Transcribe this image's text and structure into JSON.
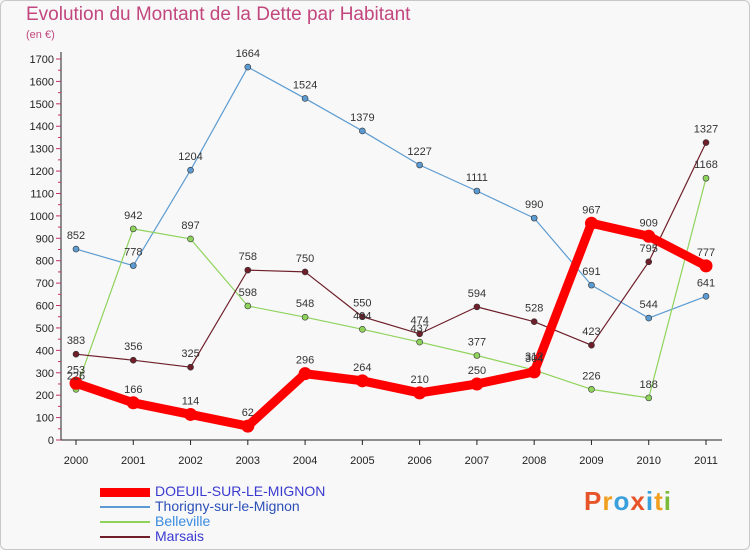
{
  "header": {
    "title": "Evolution du Montant de la Dette par Habitant",
    "unit": "(en €)"
  },
  "logo": {
    "text": "Proxiti",
    "colors": [
      "#e8542a",
      "#f0a020",
      "#3aa0dc",
      "#e8542a",
      "#3aa0dc",
      "#f0a020",
      "#7cbb3a"
    ]
  },
  "chart_data": {
    "type": "line",
    "x": [
      "2000",
      "2001",
      "2002",
      "2003",
      "2004",
      "2005",
      "2006",
      "2007",
      "2008",
      "2009",
      "2010",
      "2011"
    ],
    "ylim": [
      0,
      1700
    ],
    "yticks": [
      "0",
      "100",
      "200",
      "300",
      "400",
      "500",
      "600",
      "700",
      "800",
      "900",
      "1000",
      "1100",
      "1200",
      "1300",
      "1400",
      "1500",
      "1600",
      "1700"
    ],
    "grid": false,
    "legend_position": "bottom-left",
    "series": [
      {
        "name": "Thorigny-sur-le-Mignon",
        "color": "#5c9bd1",
        "values": [
          852,
          778,
          1204,
          1664,
          1524,
          1379,
          1227,
          1111,
          990,
          691,
          544,
          641
        ]
      },
      {
        "name": "Belleville",
        "color": "#8fd35c",
        "values": [
          226,
          942,
          897,
          598,
          548,
          494,
          437,
          377,
          312,
          226,
          188,
          1168
        ]
      },
      {
        "name": "Marsais",
        "color": "#6e1f2a",
        "values": [
          383,
          356,
          325,
          758,
          750,
          550,
          474,
          594,
          528,
          423,
          795,
          1327
        ]
      },
      {
        "name": "DOEUIL-SUR-LE-MIGNON",
        "color": "#ff0000",
        "values": [
          253,
          166,
          114,
          62,
          296,
          264,
          210,
          250,
          304,
          967,
          909,
          777
        ]
      }
    ],
    "legend_order": [
      3,
      0,
      1,
      2
    ]
  }
}
